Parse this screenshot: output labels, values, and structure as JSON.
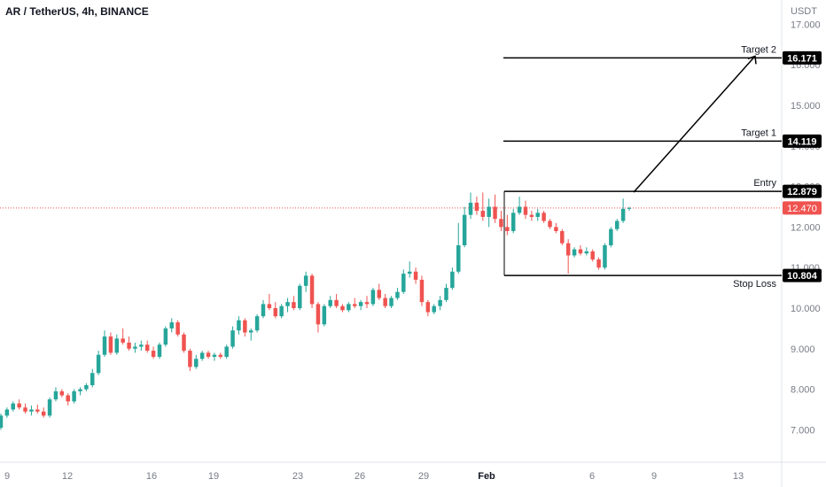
{
  "chart_title": "AR / TetherUS, 4h, BINANCE",
  "currency_label": "USDT",
  "colors": {
    "up": "#26a69a",
    "down": "#ef5350",
    "current_price": "#ef5350",
    "level_line": "#000000",
    "level_tag": "#000000",
    "axis_text": "#787b86",
    "grid_border": "#e0e3eb"
  },
  "chart_data": {
    "type": "candlestick",
    "y_ticks": [
      "7.000",
      "8.000",
      "9.000",
      "10.000",
      "11.000",
      "12.000",
      "13.000",
      "14.000",
      "15.000",
      "16.000",
      "17.000"
    ],
    "ylim": [
      6.3,
      17.6
    ],
    "x_ticks": [
      "9",
      "12",
      "16",
      "19",
      "23",
      "26",
      "29",
      "Feb",
      "6",
      "9",
      "13"
    ],
    "current_price": {
      "value": 12.47,
      "label": "12.470"
    },
    "levels": [
      {
        "name": "Target 2",
        "value": 16.171,
        "label": "16.171"
      },
      {
        "name": "Target 1",
        "value": 14.119,
        "label": "14.119"
      },
      {
        "name": "Entry",
        "value": 12.879,
        "label": "12.879"
      },
      {
        "name": "Stop Loss",
        "value": 10.804,
        "label": "10.804"
      }
    ],
    "candles": [
      [
        7.05,
        7.4,
        7.0,
        7.35
      ],
      [
        7.35,
        7.55,
        7.3,
        7.5
      ],
      [
        7.5,
        7.7,
        7.45,
        7.65
      ],
      [
        7.65,
        7.75,
        7.5,
        7.55
      ],
      [
        7.55,
        7.65,
        7.4,
        7.45
      ],
      [
        7.45,
        7.6,
        7.35,
        7.5
      ],
      [
        7.5,
        7.62,
        7.4,
        7.45
      ],
      [
        7.45,
        7.55,
        7.3,
        7.35
      ],
      [
        7.35,
        7.8,
        7.3,
        7.75
      ],
      [
        7.75,
        8.05,
        7.7,
        7.95
      ],
      [
        7.95,
        8.0,
        7.8,
        7.85
      ],
      [
        7.85,
        7.9,
        7.6,
        7.7
      ],
      [
        7.7,
        8.0,
        7.65,
        7.95
      ],
      [
        7.95,
        8.05,
        7.85,
        8.0
      ],
      [
        8.0,
        8.15,
        7.95,
        8.1
      ],
      [
        8.1,
        8.5,
        8.05,
        8.4
      ],
      [
        8.4,
        8.95,
        8.35,
        8.85
      ],
      [
        8.85,
        9.45,
        8.8,
        9.3
      ],
      [
        9.3,
        9.4,
        8.85,
        8.9
      ],
      [
        8.9,
        9.35,
        8.85,
        9.25
      ],
      [
        9.25,
        9.5,
        9.1,
        9.15
      ],
      [
        9.15,
        9.3,
        8.95,
        9.0
      ],
      [
        9.0,
        9.15,
        8.9,
        9.05
      ],
      [
        9.05,
        9.2,
        8.95,
        9.1
      ],
      [
        9.1,
        9.2,
        8.9,
        8.95
      ],
      [
        8.95,
        9.05,
        8.75,
        8.8
      ],
      [
        8.8,
        9.15,
        8.75,
        9.1
      ],
      [
        9.1,
        9.55,
        9.05,
        9.5
      ],
      [
        9.5,
        9.75,
        9.4,
        9.65
      ],
      [
        9.65,
        9.7,
        9.3,
        9.35
      ],
      [
        9.35,
        9.4,
        8.9,
        8.95
      ],
      [
        8.95,
        9.0,
        8.45,
        8.55
      ],
      [
        8.55,
        8.85,
        8.5,
        8.75
      ],
      [
        8.75,
        8.95,
        8.7,
        8.9
      ],
      [
        8.9,
        8.95,
        8.75,
        8.8
      ],
      [
        8.8,
        8.9,
        8.7,
        8.85
      ],
      [
        8.85,
        8.9,
        8.75,
        8.8
      ],
      [
        8.8,
        9.1,
        8.75,
        9.05
      ],
      [
        9.05,
        9.55,
        9.0,
        9.45
      ],
      [
        9.45,
        9.8,
        9.35,
        9.7
      ],
      [
        9.7,
        9.75,
        9.3,
        9.4
      ],
      [
        9.4,
        9.5,
        9.2,
        9.45
      ],
      [
        9.45,
        9.85,
        9.4,
        9.8
      ],
      [
        9.8,
        10.2,
        9.75,
        10.1
      ],
      [
        10.1,
        10.35,
        9.95,
        10.0
      ],
      [
        10.0,
        10.15,
        9.75,
        9.8
      ],
      [
        9.8,
        10.1,
        9.75,
        10.05
      ],
      [
        10.05,
        10.25,
        9.9,
        10.15
      ],
      [
        10.15,
        10.3,
        9.95,
        10.0
      ],
      [
        10.0,
        10.6,
        9.95,
        10.55
      ],
      [
        10.55,
        10.9,
        10.4,
        10.8
      ],
      [
        10.8,
        10.85,
        10.0,
        10.1
      ],
      [
        10.1,
        10.15,
        9.4,
        9.6
      ],
      [
        9.6,
        10.1,
        9.55,
        10.05
      ],
      [
        10.05,
        10.3,
        10.0,
        10.2
      ],
      [
        10.2,
        10.35,
        10.0,
        10.05
      ],
      [
        10.05,
        10.1,
        9.9,
        9.95
      ],
      [
        9.95,
        10.15,
        9.9,
        10.1
      ],
      [
        10.1,
        10.25,
        10.0,
        10.05
      ],
      [
        10.05,
        10.2,
        9.95,
        10.15
      ],
      [
        10.15,
        10.3,
        10.0,
        10.1
      ],
      [
        10.1,
        10.5,
        10.05,
        10.45
      ],
      [
        10.45,
        10.6,
        10.2,
        10.25
      ],
      [
        10.25,
        10.35,
        10.0,
        10.05
      ],
      [
        10.05,
        10.3,
        10.0,
        10.25
      ],
      [
        10.25,
        10.5,
        10.2,
        10.4
      ],
      [
        10.4,
        10.95,
        10.35,
        10.85
      ],
      [
        10.85,
        11.15,
        10.75,
        10.9
      ],
      [
        10.9,
        11.0,
        10.6,
        10.7
      ],
      [
        10.7,
        10.8,
        10.05,
        10.15
      ],
      [
        10.15,
        10.2,
        9.8,
        9.9
      ],
      [
        9.9,
        10.1,
        9.85,
        10.05
      ],
      [
        10.05,
        10.3,
        9.95,
        10.2
      ],
      [
        10.2,
        10.6,
        10.15,
        10.5
      ],
      [
        10.5,
        11.0,
        10.45,
        10.9
      ],
      [
        10.9,
        12.1,
        10.85,
        11.55
      ],
      [
        11.55,
        12.5,
        11.5,
        12.3
      ],
      [
        12.3,
        12.85,
        12.2,
        12.6
      ],
      [
        12.6,
        12.75,
        12.3,
        12.4
      ],
      [
        12.4,
        12.85,
        12.15,
        12.25
      ],
      [
        12.25,
        12.7,
        12.0,
        12.5
      ],
      [
        12.5,
        12.8,
        12.1,
        12.2
      ],
      [
        12.2,
        12.4,
        11.9,
        12.0
      ],
      [
        12.0,
        12.3,
        11.8,
        11.9
      ],
      [
        11.9,
        12.45,
        11.85,
        12.35
      ],
      [
        12.35,
        12.75,
        12.3,
        12.5
      ],
      [
        12.5,
        12.65,
        12.2,
        12.3
      ],
      [
        12.3,
        12.4,
        12.15,
        12.25
      ],
      [
        12.25,
        12.45,
        12.15,
        12.35
      ],
      [
        12.35,
        12.4,
        12.1,
        12.15
      ],
      [
        12.15,
        12.2,
        11.95,
        12.0
      ],
      [
        12.0,
        12.1,
        11.85,
        11.9
      ],
      [
        11.9,
        11.95,
        11.55,
        11.6
      ],
      [
        11.6,
        11.7,
        10.85,
        11.3
      ],
      [
        11.3,
        11.5,
        11.25,
        11.45
      ],
      [
        11.45,
        11.55,
        11.3,
        11.35
      ],
      [
        11.35,
        11.5,
        11.3,
        11.4
      ],
      [
        11.4,
        11.45,
        11.15,
        11.2
      ],
      [
        11.2,
        11.25,
        10.95,
        11.0
      ],
      [
        11.0,
        11.6,
        10.95,
        11.55
      ],
      [
        11.55,
        12.0,
        11.5,
        11.95
      ],
      [
        11.95,
        12.2,
        11.9,
        12.15
      ],
      [
        12.15,
        12.7,
        12.1,
        12.45
      ],
      [
        12.45,
        12.5,
        12.4,
        12.47
      ]
    ]
  }
}
